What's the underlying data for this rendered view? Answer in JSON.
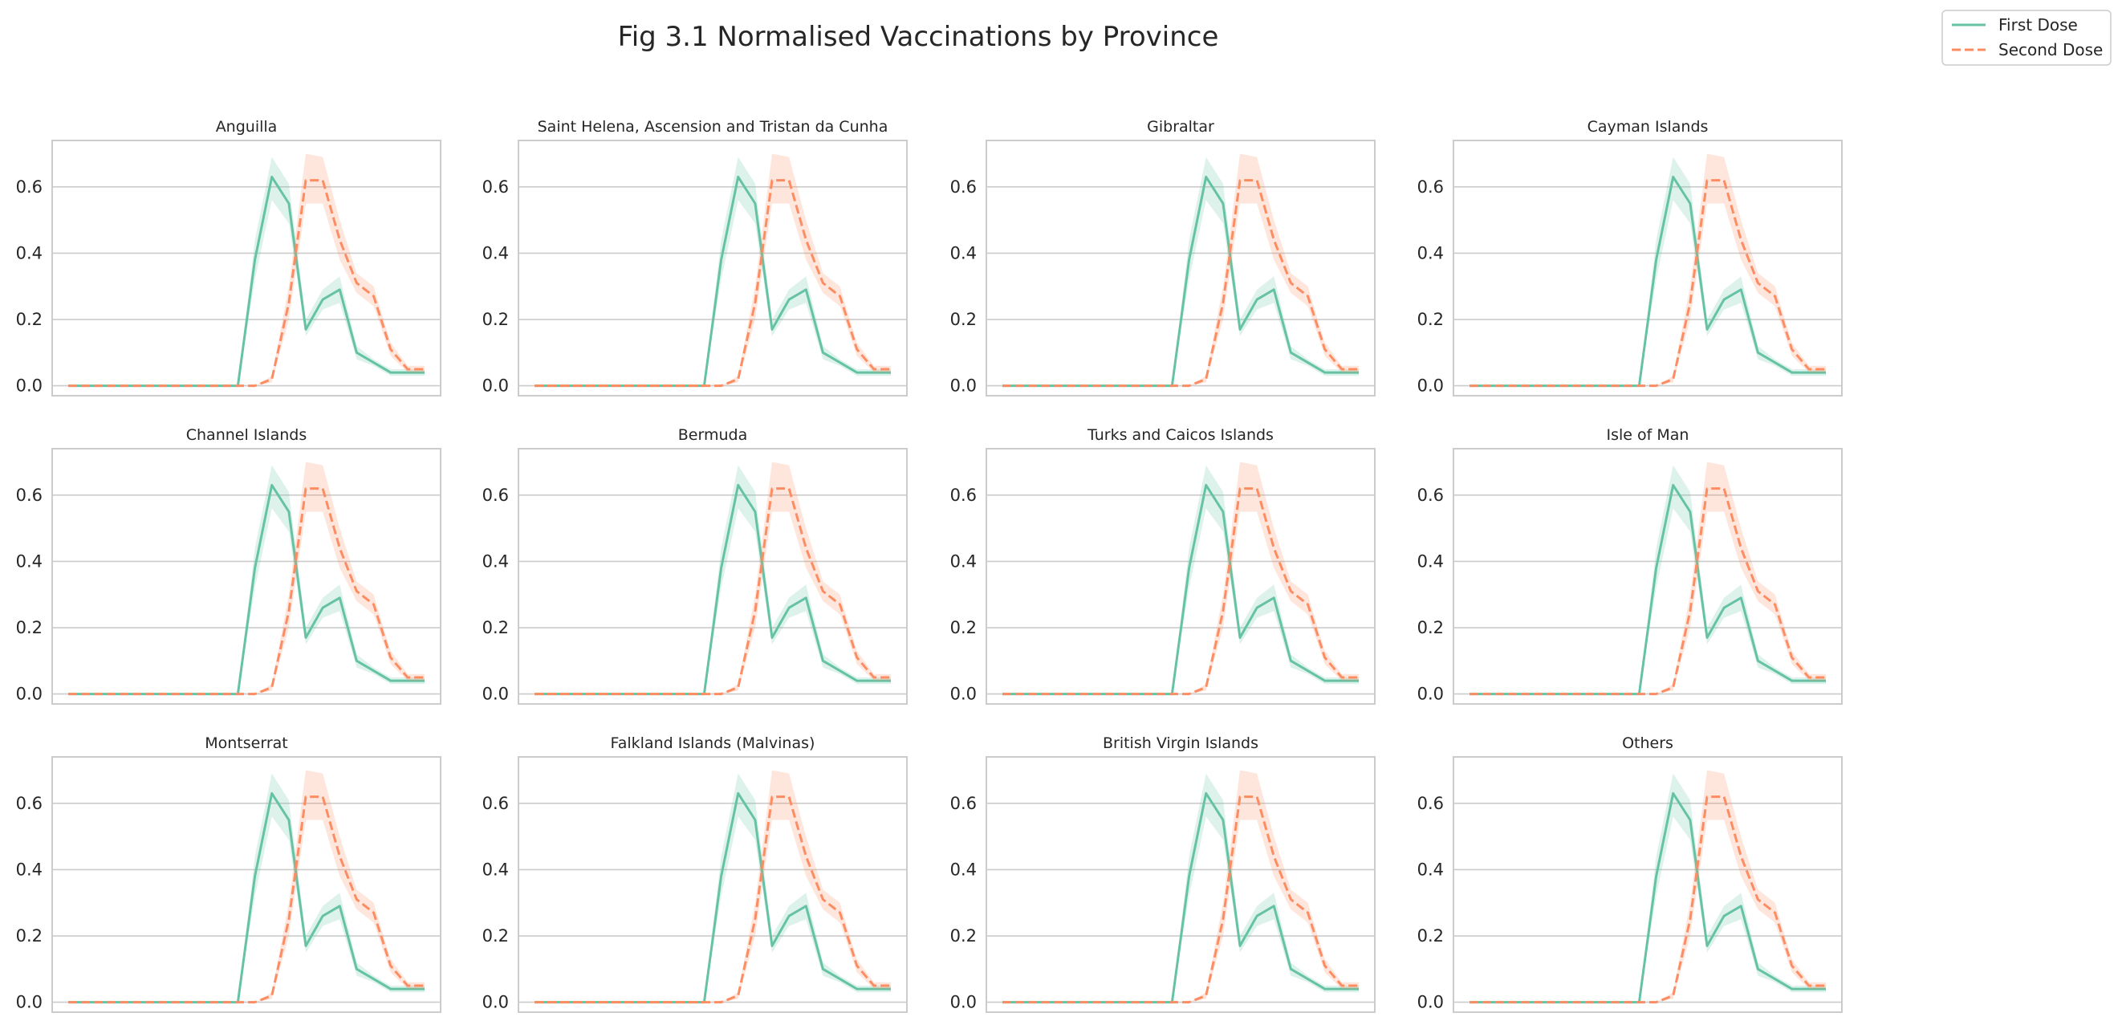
{
  "title": "Fig 3.1 Normalised Vaccinations by Province",
  "legend": {
    "position": "top-right",
    "entries": [
      {
        "label": "First Dose",
        "color": "#66c2a5",
        "style": "solid"
      },
      {
        "label": "Second Dose",
        "color": "#fc8d62",
        "style": "dashed"
      }
    ]
  },
  "chart_data": {
    "type": "line",
    "layout": "small-multiples 3x4",
    "ylim": [
      -0.03,
      0.74
    ],
    "yticks": [
      0.0,
      0.2,
      0.4,
      0.6
    ],
    "ytick_labels": [
      "0.0",
      "0.2",
      "0.4",
      "0.6"
    ],
    "grid": "horizontal",
    "x": [
      0,
      1,
      2,
      3,
      4,
      5,
      6,
      7,
      8,
      9,
      10,
      11,
      12,
      13,
      14,
      15,
      16,
      17,
      18,
      19,
      20,
      21
    ],
    "series": [
      {
        "name": "First Dose",
        "color": "#66c2a5",
        "dash": "solid",
        "values": [
          0,
          0,
          0,
          0,
          0,
          0,
          0,
          0,
          0,
          0,
          0,
          0.38,
          0.63,
          0.55,
          0.17,
          0.26,
          0.29,
          0.1,
          0.07,
          0.04,
          0.04,
          0.04
        ],
        "ci_low": [
          0,
          0,
          0,
          0,
          0,
          0,
          0,
          0,
          0,
          0,
          0,
          0.32,
          0.56,
          0.49,
          0.15,
          0.23,
          0.25,
          0.08,
          0.06,
          0.03,
          0.03,
          0.03
        ],
        "ci_high": [
          0,
          0,
          0,
          0,
          0,
          0,
          0,
          0,
          0,
          0,
          0,
          0.44,
          0.69,
          0.61,
          0.2,
          0.29,
          0.33,
          0.12,
          0.08,
          0.05,
          0.05,
          0.05
        ]
      },
      {
        "name": "Second Dose",
        "color": "#fc8d62",
        "dash": "dashed",
        "values": [
          0,
          0,
          0,
          0,
          0,
          0,
          0,
          0,
          0,
          0,
          0,
          0,
          0.02,
          0.25,
          0.62,
          0.62,
          0.44,
          0.31,
          0.27,
          0.11,
          0.05,
          0.05
        ],
        "ci_low": [
          0,
          0,
          0,
          0,
          0,
          0,
          0,
          0,
          0,
          0,
          0,
          0,
          0.01,
          0.2,
          0.55,
          0.55,
          0.38,
          0.28,
          0.24,
          0.09,
          0.04,
          0.04
        ],
        "ci_high": [
          0,
          0,
          0,
          0,
          0,
          0,
          0,
          0,
          0,
          0,
          0,
          0,
          0.03,
          0.3,
          0.7,
          0.69,
          0.5,
          0.34,
          0.3,
          0.13,
          0.06,
          0.06
        ]
      }
    ],
    "panels": [
      "Anguilla",
      "Saint Helena, Ascension and Tristan da Cunha",
      "Gibraltar",
      "Cayman Islands",
      "Channel Islands",
      "Bermuda",
      "Turks and Caicos Islands",
      "Isle of Man",
      "Montserrat",
      "Falkland Islands (Malvinas)",
      "British Virgin Islands",
      "Others"
    ]
  }
}
